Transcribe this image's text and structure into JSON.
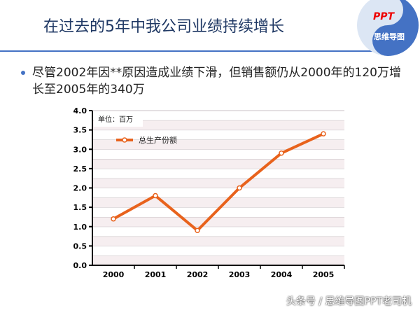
{
  "header": {
    "title": "在过去的5年中我公司业绩持续增长",
    "logo_text": "PPT",
    "logo_sub": "思维导图"
  },
  "bullet": "尽管2002年因**原因造成业绩下滑，但销售额仍从2000年的120万增长至2005年的340万",
  "footer": "头条号 / 思维导图PPT老司机",
  "colors": {
    "line": "#e8621c",
    "accent": "#4472c4",
    "band": "#f6eef0"
  },
  "chart_data": {
    "type": "line",
    "categories": [
      "2000",
      "2001",
      "2002",
      "2003",
      "2004",
      "2005"
    ],
    "series": [
      {
        "name": "总生产份额",
        "values": [
          1.2,
          1.8,
          0.9,
          2.0,
          2.9,
          3.4
        ]
      }
    ],
    "unit_label": "单位：百万",
    "ylim": [
      0,
      4.0
    ],
    "yticks": [
      "0.0",
      "0.5",
      "1.0",
      "1.5",
      "2.0",
      "2.5",
      "3.0",
      "3.5",
      "4.0"
    ],
    "grid": true,
    "legend": "top-left"
  }
}
